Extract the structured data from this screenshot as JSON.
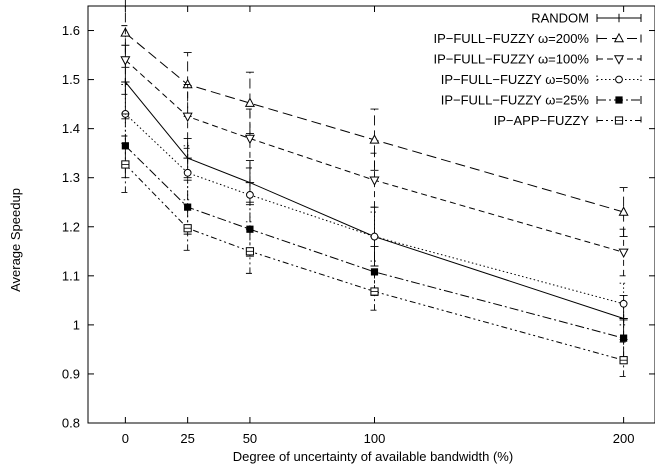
{
  "chart_data": {
    "type": "line",
    "title": "",
    "xlabel": "Degree of uncertainty of available bandwidth (%)",
    "ylabel": "Average Speedup",
    "x": [
      0,
      25,
      50,
      100,
      200
    ],
    "xlim": [
      -15,
      213
    ],
    "ylim": [
      0.8,
      1.65
    ],
    "yticks": [
      0.8,
      0.9,
      1,
      1.1,
      1.2,
      1.3,
      1.4,
      1.5,
      1.6
    ],
    "xticks": [
      0,
      25,
      50,
      100,
      200
    ],
    "grid": false,
    "legend_position": "top-right",
    "series": [
      {
        "name": "RANDOM",
        "marker": "plus",
        "dash": "solid",
        "values": [
          1.495,
          1.34,
          1.29,
          1.18,
          1.013
        ],
        "err_low": [
          1.42,
          1.3,
          1.245,
          1.12,
          0.97
        ],
        "err_high": [
          1.57,
          1.38,
          1.335,
          1.24,
          1.06
        ]
      },
      {
        "name": "IP−FULL−FUZZY ω=200%",
        "marker": "triangle-up",
        "dash": "long",
        "values": [
          1.595,
          1.49,
          1.452,
          1.377,
          1.23
        ],
        "err_low": [
          1.525,
          1.425,
          1.39,
          1.315,
          1.18
        ],
        "err_high": [
          1.665,
          1.555,
          1.515,
          1.44,
          1.28
        ]
      },
      {
        "name": "IP−FULL−FUZZY ω=100%",
        "marker": "triangle-down",
        "dash": "medium",
        "values": [
          1.54,
          1.425,
          1.38,
          1.295,
          1.148
        ],
        "err_low": [
          1.47,
          1.36,
          1.32,
          1.24,
          1.1
        ],
        "err_high": [
          1.61,
          1.49,
          1.44,
          1.35,
          1.195
        ]
      },
      {
        "name": "IP−FULL−FUZZY ω=50%",
        "marker": "circle",
        "dash": "dotted",
        "values": [
          1.43,
          1.31,
          1.265,
          1.18,
          1.043
        ],
        "err_low": [
          1.37,
          1.255,
          1.21,
          1.13,
          1.0
        ],
        "err_high": [
          1.49,
          1.365,
          1.32,
          1.23,
          1.085
        ]
      },
      {
        "name": "IP−FULL−FUZZY ω=25%",
        "marker": "square-filled",
        "dash": "dashdot",
        "values": [
          1.365,
          1.24,
          1.195,
          1.108,
          0.973
        ],
        "err_low": [
          1.3,
          1.185,
          1.14,
          1.06,
          0.935
        ],
        "err_high": [
          1.43,
          1.295,
          1.25,
          1.16,
          1.01
        ]
      },
      {
        "name": "IP−APP−FUZZY",
        "marker": "square-open",
        "dash": "dashdotdot",
        "values": [
          1.327,
          1.197,
          1.15,
          1.068,
          0.928
        ],
        "err_low": [
          1.27,
          1.152,
          1.105,
          1.03,
          0.895
        ],
        "err_high": [
          1.385,
          1.245,
          1.195,
          1.11,
          0.965
        ]
      }
    ]
  }
}
